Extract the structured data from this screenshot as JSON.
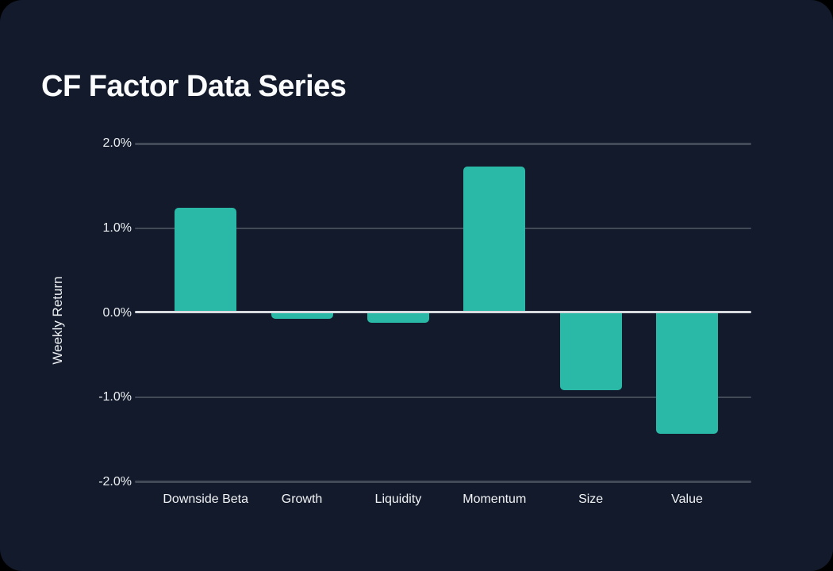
{
  "page": {
    "background": "#000000",
    "card_background": "#121a2b"
  },
  "chart_data": {
    "type": "bar",
    "title": "CF Factor Data Series",
    "xlabel": "",
    "ylabel": "Weekly Return",
    "categories": [
      "Downside Beta",
      "Growth",
      "Liquidity",
      "Momentum",
      "Size",
      "Value"
    ],
    "values": [
      1.24,
      -0.07,
      -0.12,
      1.73,
      -0.91,
      -1.43
    ],
    "unit": "%",
    "ylim": [
      -2.0,
      2.0
    ],
    "yticks": [
      2.0,
      1.0,
      0.0,
      -1.0,
      -2.0
    ],
    "ytick_labels": [
      "2.0%",
      "1.0%",
      "0.0%",
      "-1.0%",
      "-2.0%"
    ],
    "grid": true,
    "legend": false,
    "colors": {
      "bar": "#2ab9a6",
      "gridline": "#424a58",
      "zero_line": "#d7dadf",
      "title_text": "#fafbfc",
      "tick_text": "#edeff2"
    }
  }
}
